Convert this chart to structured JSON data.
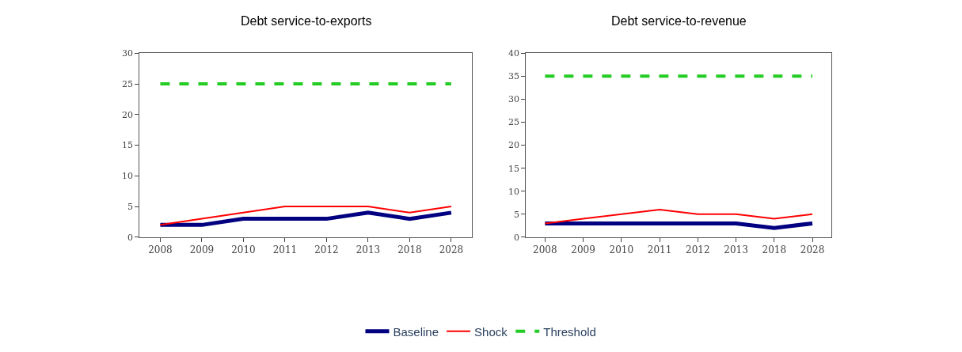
{
  "chart_data": [
    {
      "type": "line",
      "title": "Debt service-to-exports",
      "categories": [
        "2008",
        "2009",
        "2010",
        "2011",
        "2012",
        "2013",
        "2018",
        "2028"
      ],
      "ylim": [
        0,
        30
      ],
      "yticks": [
        0,
        5,
        10,
        15,
        20,
        25,
        30
      ],
      "legend": "bottom",
      "marker": "none",
      "series": [
        {
          "name": "Baseline",
          "color": "#000080",
          "line_style": "solid",
          "values": [
            2,
            2,
            3,
            3,
            3,
            4,
            3,
            4
          ]
        },
        {
          "name": "Shock",
          "color": "#ff0000",
          "line_style": "solid",
          "values": [
            2,
            3,
            4,
            5,
            5,
            5,
            4,
            5
          ]
        },
        {
          "name": "Threshold",
          "color": "#22cc22",
          "line_style": "dashed",
          "values": [
            25,
            25,
            25,
            25,
            25,
            25,
            25,
            25
          ]
        }
      ]
    },
    {
      "type": "line",
      "title": "Debt service-to-revenue",
      "categories": [
        "2008",
        "2009",
        "2010",
        "2011",
        "2012",
        "2013",
        "2018",
        "2028"
      ],
      "ylim": [
        0,
        40
      ],
      "yticks": [
        0,
        5,
        10,
        15,
        20,
        25,
        30,
        35,
        40
      ],
      "marker": "none",
      "series": [
        {
          "color": "#000080",
          "line_style": "solid",
          "values": [
            3,
            3,
            3,
            3,
            3,
            3,
            2,
            3
          ]
        },
        {
          "color": "#ff0000",
          "line_style": "solid",
          "values": [
            3,
            4,
            5,
            6,
            5,
            5,
            4,
            5
          ]
        },
        {
          "color": "#22cc22",
          "line_style": "dashed",
          "values": [
            35,
            35,
            35,
            35,
            35,
            35,
            35,
            35
          ]
        }
      ]
    }
  ]
}
